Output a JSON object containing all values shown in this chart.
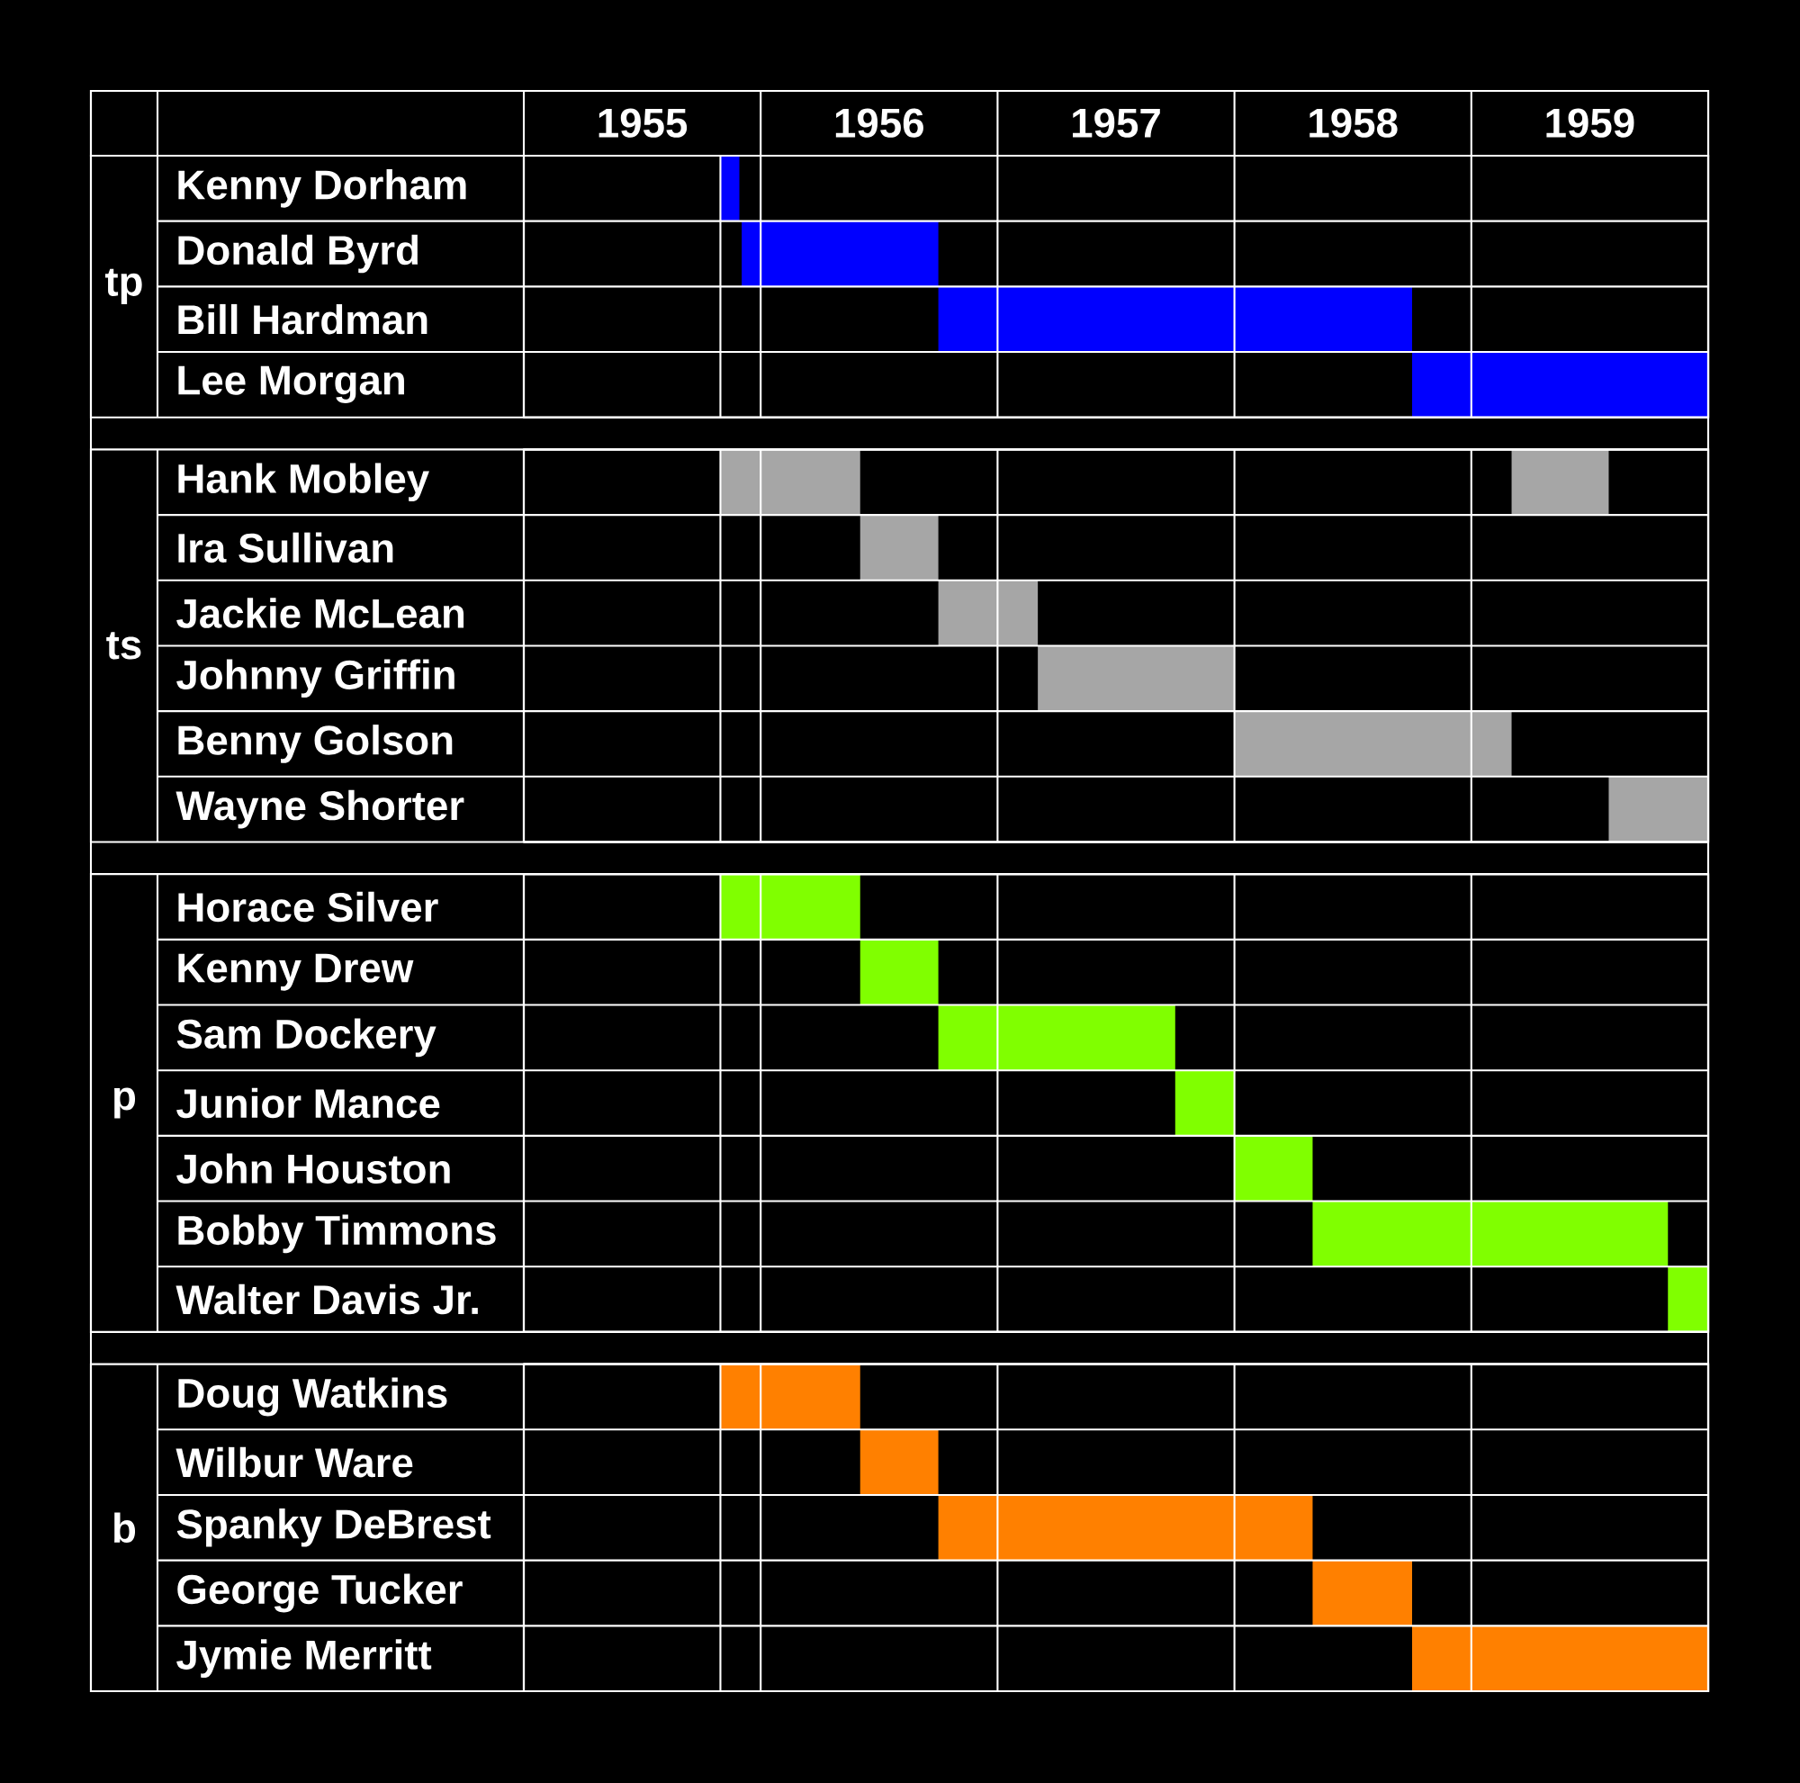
{
  "chart_data": [
    {
      "type": "bar",
      "orientation": "horizontal",
      "ylabel": "tp",
      "categories": [
        "Kenny Dorham",
        "Donald Byrd",
        "Bill Hardman",
        "Lee Morgan"
      ],
      "xlim": [
        1955,
        1960
      ],
      "xticks": [
        {
          "value": 1955,
          "label": null
        },
        {
          "value": 1955.5,
          "label": "1955"
        },
        {
          "value": 1955.83,
          "label": null
        },
        {
          "value": 1956,
          "label": null
        },
        {
          "value": 1956.5,
          "label": "1956"
        },
        {
          "value": 1957,
          "label": null
        },
        {
          "value": 1957.5,
          "label": "1957"
        },
        {
          "value": 1958,
          "label": null
        },
        {
          "value": 1958.5,
          "label": "1958"
        },
        {
          "value": 1959,
          "label": null
        },
        {
          "value": 1959.5,
          "label": "1959"
        },
        {
          "value": 1960,
          "label": null
        }
      ],
      "grid": true,
      "series": [
        {
          "color": "#0000ff",
          "base": [
            1955.83,
            1955.92,
            1956.75,
            1958.75
          ],
          "values": [
            0.08,
            0.83,
            2.0,
            1.25
          ]
        }
      ]
    },
    {
      "type": "bar",
      "orientation": "horizontal",
      "ylabel": "ts",
      "tick_labels": "y",
      "categories": [
        "Hank Mobley",
        "Ira Sullivan",
        "Jackie McLean",
        "Johnny Griffin",
        "Benny Golson",
        "Wayne Shorter"
      ],
      "xlim": [
        1955,
        1960
      ],
      "xticks": [
        {
          "value": 1955,
          "label": null
        },
        {
          "value": 1955.83,
          "label": null
        },
        {
          "value": 1956,
          "label": null
        },
        {
          "value": 1957,
          "label": null
        },
        {
          "value": 1958,
          "label": null
        },
        {
          "value": 1959,
          "label": null
        },
        {
          "value": 1960,
          "label": null
        }
      ],
      "grid": true,
      "series": [
        {
          "color": "#a6a6a6",
          "base": [
            1955.83,
            1956.42,
            1956.75,
            1957.17,
            1958.0,
            1959.58
          ],
          "values": [
            0.59,
            0.33,
            0.42,
            0.83,
            1.17,
            0.42
          ]
        },
        {
          "color": "#a6a6a6",
          "base": [
            1959.17,
            null,
            null,
            null,
            null,
            null
          ],
          "values": [
            0.41,
            null,
            null,
            null,
            null,
            null
          ]
        }
      ]
    },
    {
      "type": "bar",
      "orientation": "horizontal",
      "ylabel": "p",
      "tick_labels": "y",
      "categories": [
        "Horace Silver",
        "Kenny Drew",
        "Sam Dockery",
        "Junior Mance",
        "John Houston",
        "Bobby Timmons",
        "Walter Davis Jr."
      ],
      "xlim": [
        1955,
        1960
      ],
      "xticks": [
        {
          "value": 1955,
          "label": null
        },
        {
          "value": 1955.83,
          "label": null
        },
        {
          "value": 1956,
          "label": null
        },
        {
          "value": 1957,
          "label": null
        },
        {
          "value": 1958,
          "label": null
        },
        {
          "value": 1959,
          "label": null
        },
        {
          "value": 1960,
          "label": null
        }
      ],
      "grid": true,
      "series": [
        {
          "color": "#80ff00",
          "base": [
            1955.83,
            1956.42,
            1956.75,
            1957.75,
            1958.0,
            1958.33,
            1959.83
          ],
          "values": [
            0.59,
            0.33,
            1.0,
            0.25,
            0.33,
            1.5,
            0.17
          ]
        }
      ]
    },
    {
      "type": "bar",
      "orientation": "horizontal",
      "ylabel": "b",
      "tick_labels": "y",
      "categories": [
        "Doug Watkins",
        "Wilbur Ware",
        "Spanky DeBrest",
        "George Tucker",
        "Jymie Merritt"
      ],
      "xlim": [
        1955,
        1960
      ],
      "xticks": [
        {
          "value": 1955,
          "label": null
        },
        {
          "value": 1955.83,
          "label": null
        },
        {
          "value": 1956,
          "label": null
        },
        {
          "value": 1957,
          "label": null
        },
        {
          "value": 1958,
          "label": null
        },
        {
          "value": 1959,
          "label": null
        },
        {
          "value": 1960,
          "label": null
        }
      ],
      "grid": true,
      "series": [
        {
          "color": "#ff8000",
          "base": [
            1955.83,
            1956.42,
            1956.75,
            1958.33,
            1958.75
          ],
          "values": [
            0.59,
            0.33,
            1.58,
            0.42,
            1.25
          ]
        }
      ]
    }
  ]
}
